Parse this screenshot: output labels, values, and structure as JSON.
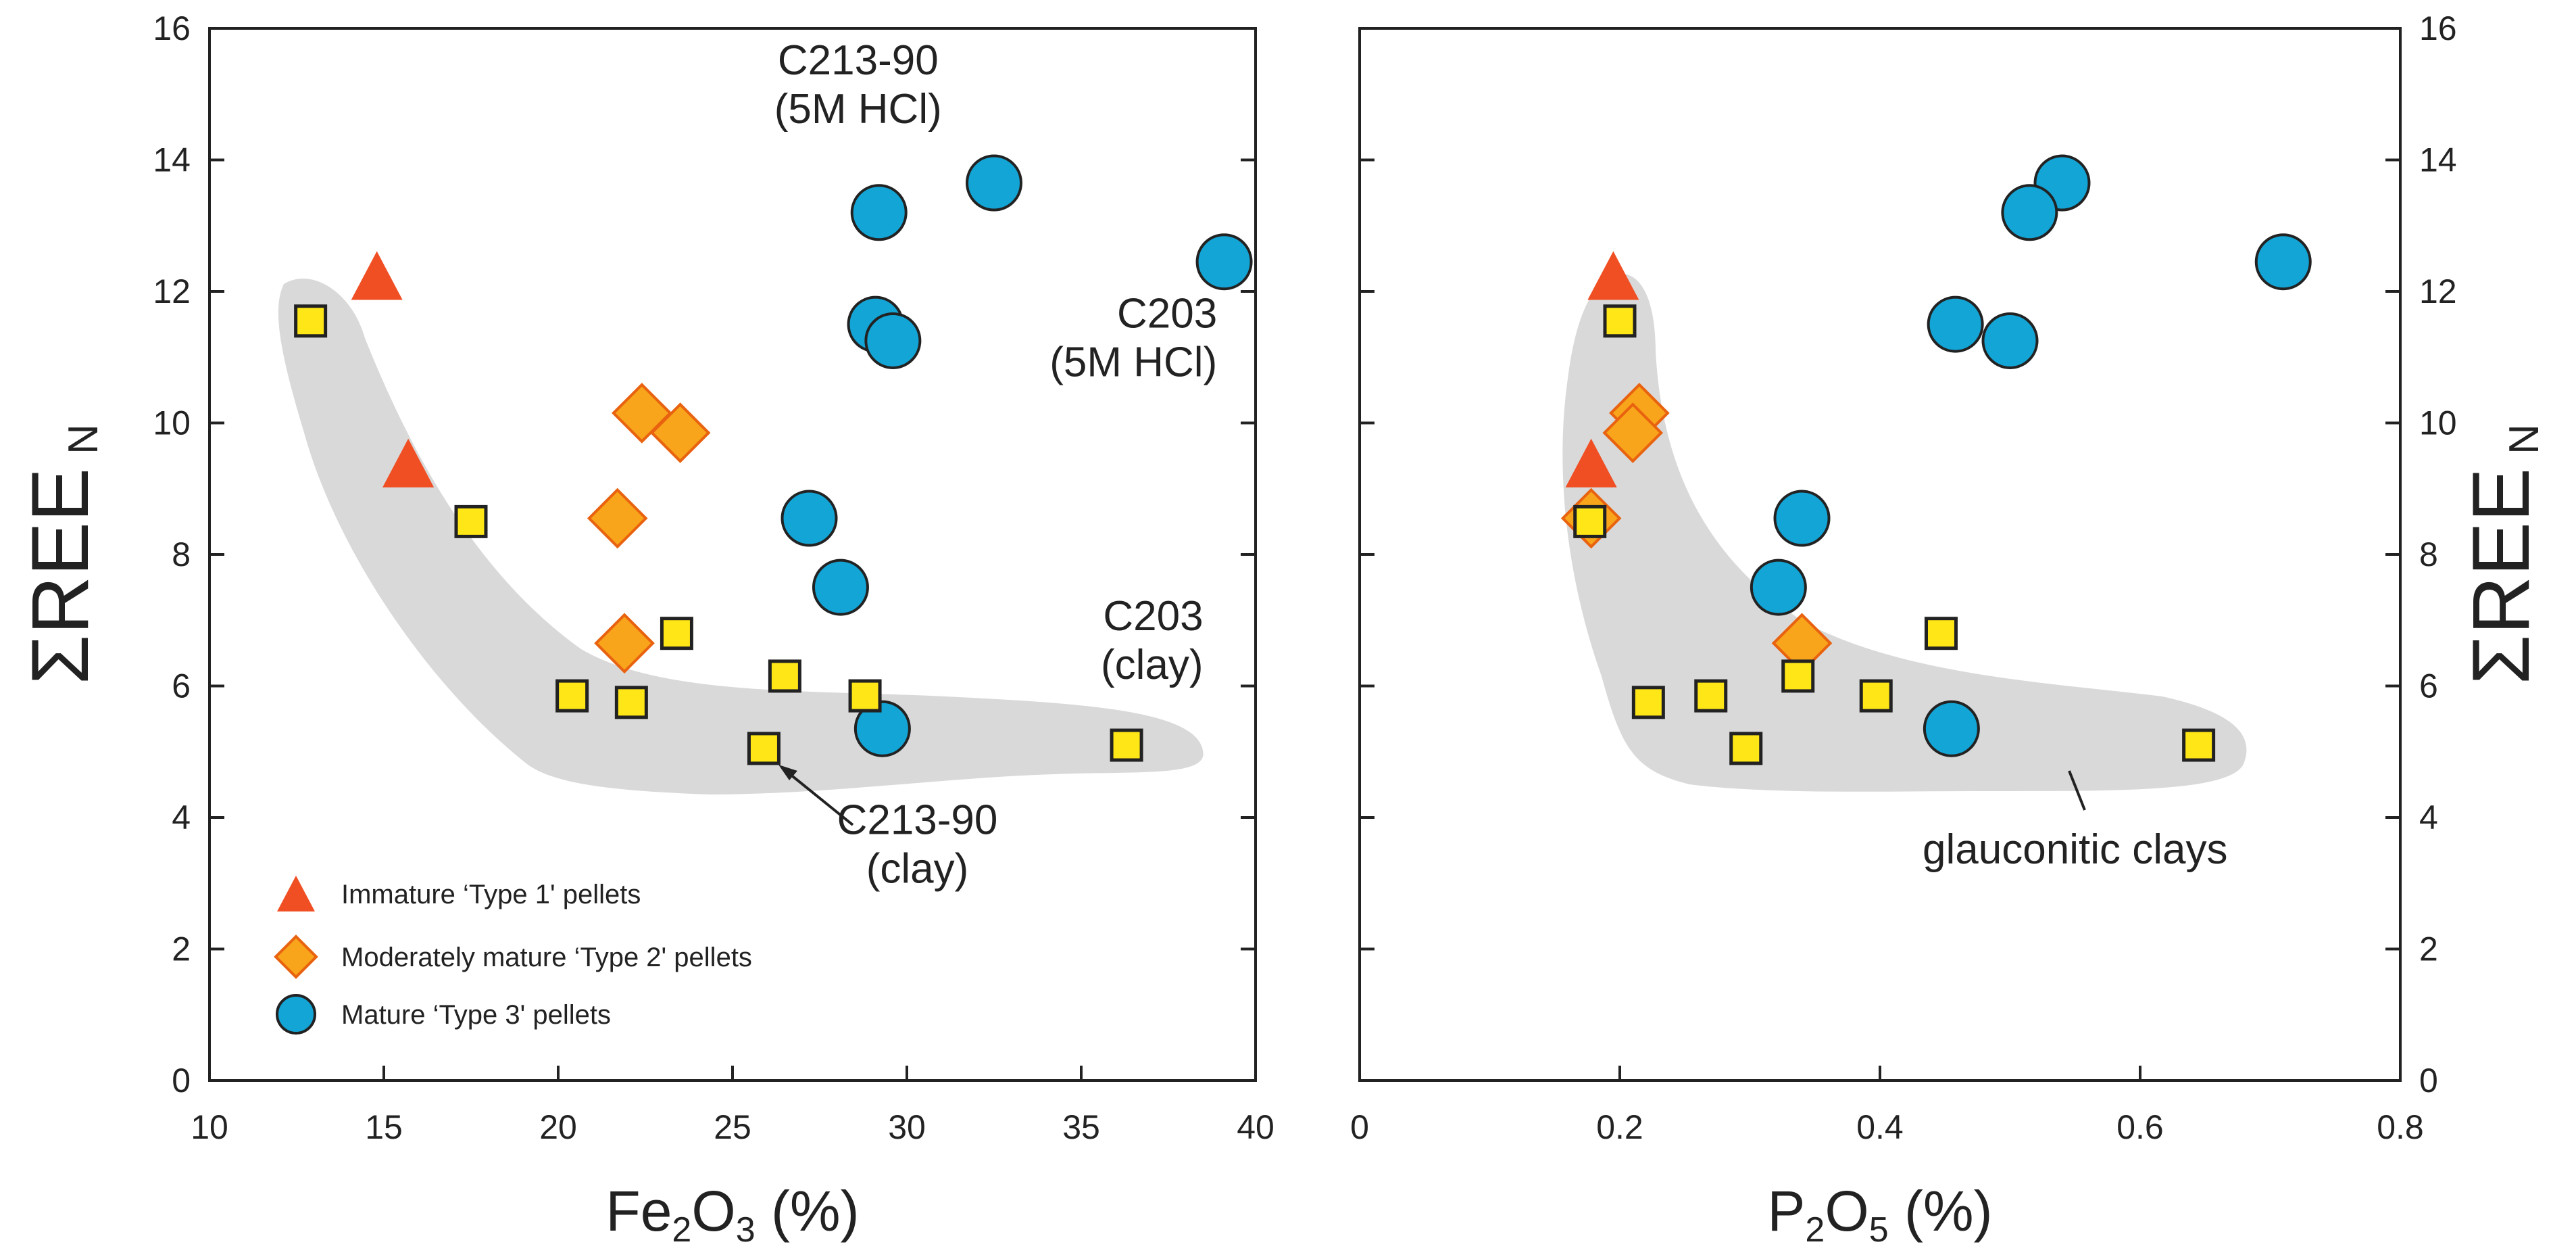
{
  "chart_data": [
    {
      "type": "scatter",
      "panel": "left",
      "xlabel_parts": [
        "Fe",
        "2",
        "O",
        "3",
        " (%)"
      ],
      "ylabel_parts": [
        "ΣREE",
        "N"
      ],
      "xlim": [
        10,
        40
      ],
      "ylim": [
        0,
        16
      ],
      "xticks": [
        "10",
        "15",
        "20",
        "25",
        "30",
        "35",
        "40"
      ],
      "yticks": [
        "0",
        "2",
        "4",
        "6",
        "8",
        "10",
        "12",
        "14",
        "16"
      ],
      "series": [
        {
          "name": "Immature ‘Type 1' pellets",
          "marker": "triangle",
          "color": "#f04e23",
          "points": [
            [
              14.8,
              12.2
            ],
            [
              15.7,
              9.35
            ]
          ]
        },
        {
          "name": "Moderately mature ‘Type 2' pellets",
          "marker": "diamond",
          "color": "#f8a51b",
          "points": [
            [
              22.4,
              10.15
            ],
            [
              23.5,
              9.85
            ],
            [
              21.7,
              8.55
            ],
            [
              21.9,
              6.65
            ]
          ]
        },
        {
          "name": "Mature ‘Type 3' pellets",
          "marker": "circle",
          "color": "#13a5d6",
          "points": [
            [
              32.5,
              13.65
            ],
            [
              29.2,
              13.2
            ],
            [
              39.1,
              12.45
            ],
            [
              29.1,
              11.5
            ],
            [
              29.6,
              11.25
            ],
            [
              27.2,
              8.55
            ],
            [
              28.1,
              7.5
            ],
            [
              29.3,
              5.35
            ]
          ]
        },
        {
          "name": "glauconitic clays",
          "marker": "square",
          "color": "#ffe617",
          "points": [
            [
              12.9,
              11.55
            ],
            [
              17.5,
              8.5
            ],
            [
              23.4,
              6.8
            ],
            [
              26.5,
              6.15
            ],
            [
              20.4,
              5.85
            ],
            [
              28.8,
              5.85
            ],
            [
              22.1,
              5.75
            ],
            [
              25.9,
              5.05
            ],
            [
              36.3,
              5.1
            ]
          ]
        }
      ],
      "annotations": [
        {
          "lines": [
            "C213-90",
            "(5M HCl)"
          ],
          "anchor": [
            28.6,
            15.3
          ],
          "align": "middle"
        },
        {
          "lines": [
            "C203",
            "(5M HCl)"
          ],
          "anchor": [
            38.9,
            11.45
          ],
          "align": "end"
        },
        {
          "lines": [
            "C203",
            "(clay)"
          ],
          "anchor": [
            38.5,
            6.85
          ],
          "align": "end"
        },
        {
          "lines": [
            "C213-90",
            "(clay)"
          ],
          "anchor": [
            30.3,
            3.75
          ],
          "align": "middle"
        }
      ],
      "legend": {
        "placement": "bottom-left",
        "items": [
          "Immature ‘Type 1' pellets",
          "Moderately mature ‘Type 2' pellets",
          "Mature ‘Type 3' pellets"
        ]
      }
    },
    {
      "type": "scatter",
      "panel": "right",
      "xlabel_parts": [
        "P",
        "2",
        "O",
        "5",
        " (%)"
      ],
      "ylabel_parts": [
        "ΣREE",
        "N"
      ],
      "xlim": [
        0,
        0.8
      ],
      "ylim": [
        0,
        16
      ],
      "xticks": [
        "0",
        "0.2",
        "0.4",
        "0.6",
        "0.8"
      ],
      "yticks": [
        "0",
        "2",
        "4",
        "6",
        "8",
        "10",
        "12",
        "14",
        "16"
      ],
      "series": [
        {
          "name": "Immature ‘Type 1' pellets",
          "marker": "triangle",
          "color": "#f04e23",
          "points": [
            [
              0.195,
              12.2
            ],
            [
              0.178,
              9.35
            ]
          ]
        },
        {
          "name": "Moderately mature ‘Type 2' pellets",
          "marker": "diamond",
          "color": "#f8a51b",
          "points": [
            [
              0.215,
              10.15
            ],
            [
              0.21,
              9.85
            ],
            [
              0.178,
              8.55
            ],
            [
              0.34,
              6.65
            ]
          ]
        },
        {
          "name": "Mature ‘Type 3' pellets",
          "marker": "circle",
          "color": "#13a5d6",
          "points": [
            [
              0.54,
              13.65
            ],
            [
              0.515,
              13.2
            ],
            [
              0.71,
              12.45
            ],
            [
              0.458,
              11.5
            ],
            [
              0.5,
              11.25
            ],
            [
              0.34,
              8.55
            ],
            [
              0.322,
              7.5
            ],
            [
              0.455,
              5.35
            ]
          ]
        },
        {
          "name": "glauconitic clays",
          "marker": "square",
          "color": "#ffe617",
          "points": [
            [
              0.2,
              11.55
            ],
            [
              0.177,
              8.5
            ],
            [
              0.447,
              6.8
            ],
            [
              0.337,
              6.15
            ],
            [
              0.27,
              5.85
            ],
            [
              0.397,
              5.85
            ],
            [
              0.222,
              5.75
            ],
            [
              0.297,
              5.05
            ],
            [
              0.645,
              5.1
            ]
          ]
        }
      ],
      "annotations": [
        {
          "lines": [
            "glauconitic clays"
          ],
          "anchor": [
            0.55,
            3.3
          ],
          "align": "middle"
        }
      ]
    }
  ]
}
